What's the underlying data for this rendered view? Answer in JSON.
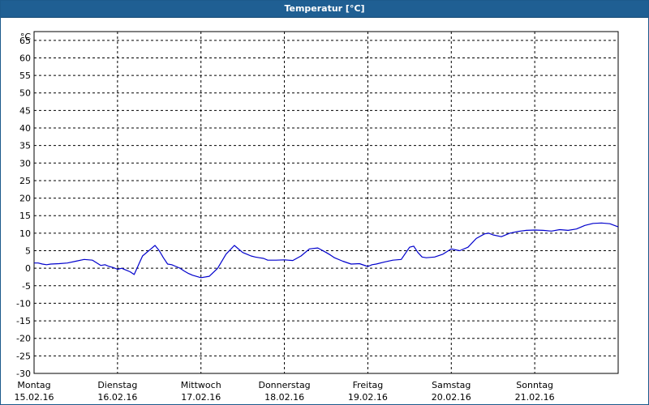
{
  "window": {
    "title": "Temperatur [°C]",
    "title_bar_color": "#1f5f93",
    "title_text_color": "#ffffff"
  },
  "chart_data": {
    "type": "line",
    "title": "Temperatur [°C]",
    "ylabel": "°C",
    "xlabel": "",
    "ylim": [
      -30,
      70
    ],
    "y_ticks": [
      65,
      60,
      55,
      50,
      45,
      40,
      35,
      30,
      25,
      20,
      15,
      10,
      5,
      0,
      -5,
      -10,
      -15,
      -20,
      -25,
      -30
    ],
    "grid": true,
    "legend": "none",
    "x_range_days": [
      0,
      7
    ],
    "day_labels": [
      {
        "day": "Montag",
        "date": "15.02.16"
      },
      {
        "day": "Dienstag",
        "date": "16.02.16"
      },
      {
        "day": "Mittwoch",
        "date": "17.02.16"
      },
      {
        "day": "Donnerstag",
        "date": "18.02.16"
      },
      {
        "day": "Freitag",
        "date": "19.02.16"
      },
      {
        "day": "Samstag",
        "date": "20.02.16"
      },
      {
        "day": "Sonntag",
        "date": "21.02.16"
      }
    ],
    "series": [
      {
        "color": "#0000cc",
        "x": [
          0.0,
          0.05,
          0.1,
          0.15,
          0.2,
          0.3,
          0.4,
          0.5,
          0.6,
          0.7,
          0.8,
          0.85,
          0.9,
          0.95,
          1.0,
          1.05,
          1.1,
          1.15,
          1.2,
          1.3,
          1.4,
          1.45,
          1.5,
          1.55,
          1.6,
          1.65,
          1.7,
          1.75,
          1.8,
          1.85,
          1.9,
          2.0,
          2.1,
          2.2,
          2.3,
          2.4,
          2.5,
          2.55,
          2.6,
          2.65,
          2.7,
          2.75,
          2.8,
          2.9,
          3.0,
          3.1,
          3.2,
          3.3,
          3.4,
          3.5,
          3.55,
          3.6,
          3.7,
          3.8,
          3.9,
          4.0,
          4.05,
          4.1,
          4.2,
          4.3,
          4.4,
          4.5,
          4.55,
          4.6,
          4.65,
          4.7,
          4.8,
          4.9,
          5.0,
          5.1,
          5.2,
          5.3,
          5.4,
          5.45,
          5.5,
          5.6,
          5.7,
          5.8,
          5.9,
          6.0,
          6.1,
          6.2,
          6.3,
          6.4,
          6.5,
          6.6,
          6.7,
          6.8,
          6.9,
          7.0
        ],
        "values": [
          1.5,
          1.5,
          1.2,
          1.0,
          1.2,
          1.3,
          1.5,
          2.0,
          2.5,
          2.3,
          0.8,
          1.0,
          0.5,
          0.2,
          -0.3,
          0.0,
          -0.5,
          -1.0,
          -1.8,
          3.5,
          5.5,
          6.5,
          5.0,
          3.0,
          1.2,
          1.0,
          0.5,
          0.0,
          -0.8,
          -1.5,
          -2.0,
          -2.7,
          -2.3,
          0.0,
          4.0,
          6.5,
          4.5,
          4.0,
          3.5,
          3.2,
          3.0,
          2.8,
          2.3,
          2.3,
          2.4,
          2.2,
          3.5,
          5.5,
          5.8,
          4.5,
          3.8,
          3.0,
          2.0,
          1.2,
          1.3,
          0.5,
          1.0,
          1.2,
          1.8,
          2.3,
          2.5,
          6.0,
          6.3,
          4.5,
          3.2,
          3.0,
          3.2,
          4.0,
          5.5,
          5.0,
          6.0,
          8.5,
          9.8,
          10.0,
          9.5,
          9.0,
          10.0,
          10.5,
          10.8,
          10.9,
          10.8,
          10.6,
          11.0,
          10.8,
          11.2,
          12.2,
          12.8,
          12.9,
          12.7,
          11.8
        ]
      }
    ]
  }
}
